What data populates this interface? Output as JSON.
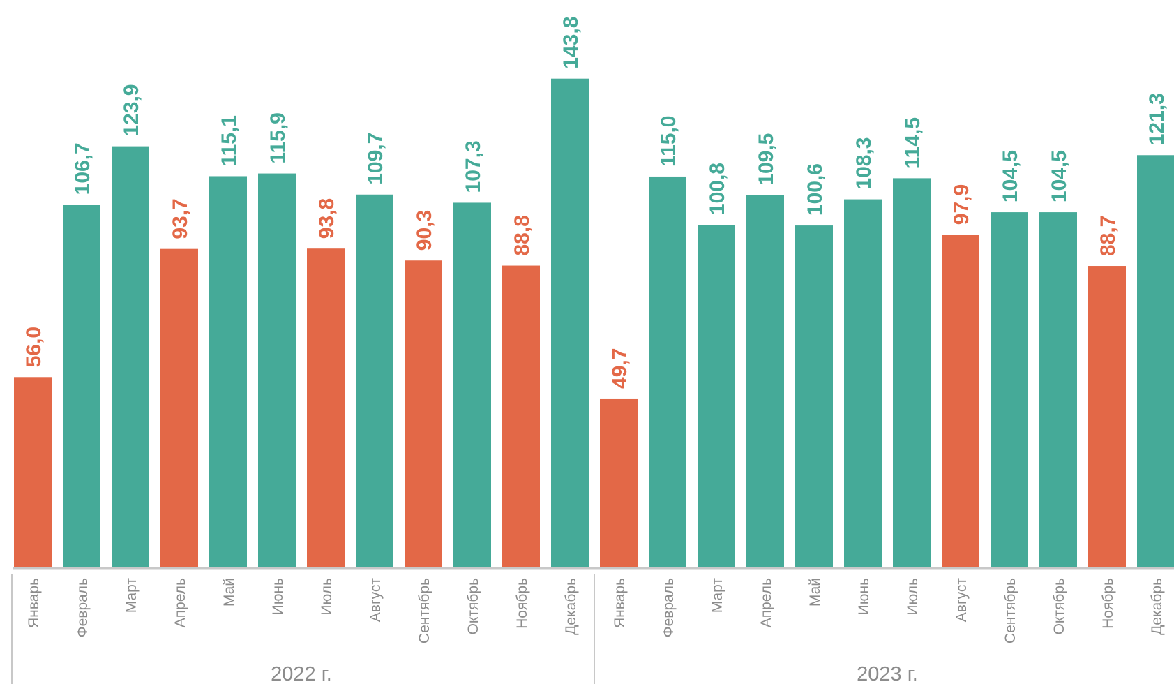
{
  "chart_data": {
    "type": "bar",
    "title": "",
    "xlabel": "",
    "ylabel": "",
    "ylim": [
      0,
      150
    ],
    "grid": false,
    "legend": "none",
    "colors": {
      "up": "#45aa98",
      "down": "#e36847",
      "axis": "#c8c8c8",
      "text": "#8c8c8c"
    },
    "groups": [
      {
        "label": "2022 г.",
        "categories": [
          "Январь",
          "Февраль",
          "Март",
          "Апрель",
          "Май",
          "Июнь",
          "Июль",
          "Август",
          "Сентябрь",
          "Октябрь",
          "Ноябрь",
          "Декабрь"
        ]
      },
      {
        "label": "2023 г.",
        "categories": [
          "Январь",
          "Февраль",
          "Март",
          "Апрель",
          "Май",
          "Июнь",
          "Июль",
          "Август",
          "Сентябрь",
          "Октябрь",
          "Ноябрь",
          "Декабрь"
        ]
      }
    ],
    "series": [
      {
        "values": [
          56.0,
          106.7,
          123.9,
          93.7,
          115.1,
          115.9,
          93.8,
          109.7,
          90.3,
          107.3,
          88.8,
          143.8,
          49.7,
          115.0,
          100.8,
          109.5,
          100.6,
          108.3,
          114.5,
          97.9,
          104.5,
          104.5,
          88.7,
          121.3
        ],
        "labels": [
          "56,0",
          "106,7",
          "123,9",
          "93,7",
          "115,1",
          "115,9",
          "93,8",
          "109,7",
          "90,3",
          "107,3",
          "88,8",
          "143,8",
          "49,7",
          "115,0",
          "100,8",
          "109,5",
          "100,6",
          "108,3",
          "114,5",
          "97,9",
          "104,5",
          "104,5",
          "88,7",
          "121,3"
        ]
      }
    ]
  }
}
